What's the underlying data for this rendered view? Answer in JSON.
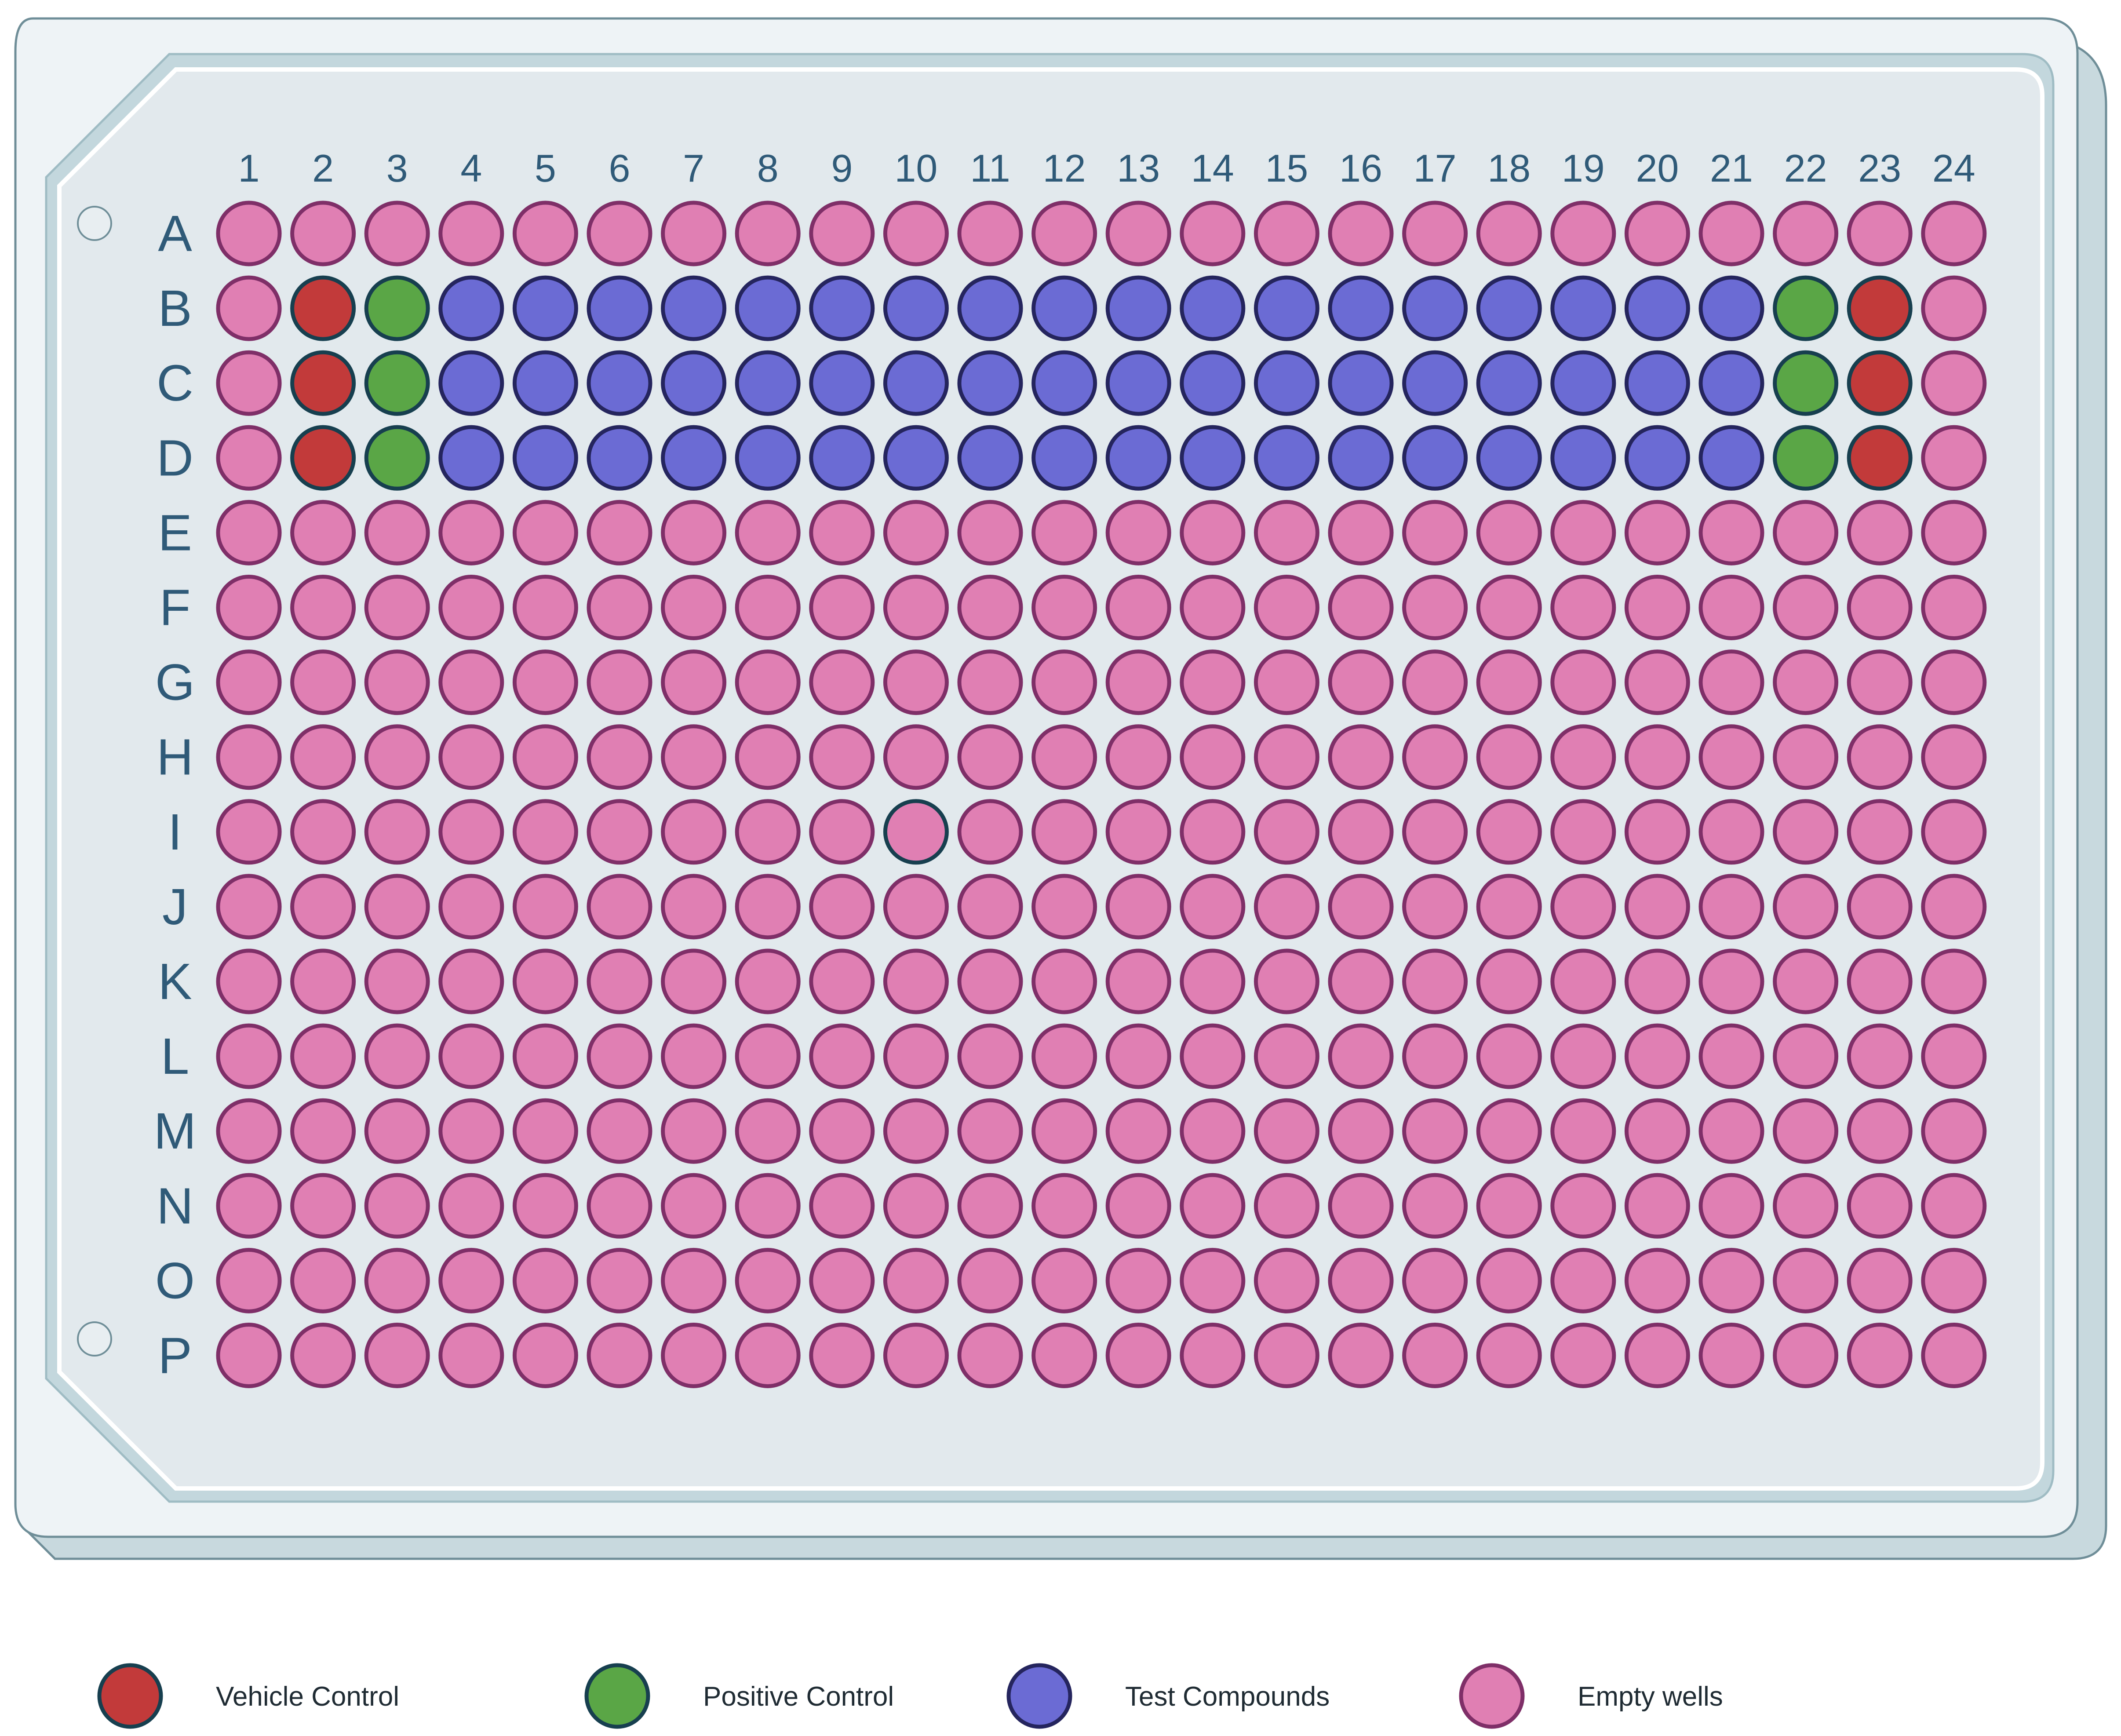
{
  "columns": [
    "1",
    "2",
    "3",
    "4",
    "5",
    "6",
    "7",
    "8",
    "9",
    "10",
    "11",
    "12",
    "13",
    "14",
    "15",
    "16",
    "17",
    "18",
    "19",
    "20",
    "21",
    "22",
    "23",
    "24"
  ],
  "rows": [
    "A",
    "B",
    "C",
    "D",
    "E",
    "F",
    "G",
    "H",
    "I",
    "J",
    "K",
    "L",
    "M",
    "N",
    "O",
    "P"
  ],
  "well_types": {
    "vehicle": {
      "fill": "#c23a3a",
      "stroke": "#173f4f"
    },
    "positive": {
      "fill": "#5aa646",
      "stroke": "#173f4f"
    },
    "test": {
      "fill": "#6b6bd4",
      "stroke": "#25255e"
    },
    "empty": {
      "fill": "#e07fb3",
      "stroke": "#7f2f68"
    }
  },
  "wells": {
    "A": [
      "empty",
      "empty",
      "empty",
      "empty",
      "empty",
      "empty",
      "empty",
      "empty",
      "empty",
      "empty",
      "empty",
      "empty",
      "empty",
      "empty",
      "empty",
      "empty",
      "empty",
      "empty",
      "empty",
      "empty",
      "empty",
      "empty",
      "empty",
      "empty"
    ],
    "B": [
      "empty",
      "vehicle",
      "positive",
      "test",
      "test",
      "test",
      "test",
      "test",
      "test",
      "test",
      "test",
      "test",
      "test",
      "test",
      "test",
      "test",
      "test",
      "test",
      "test",
      "test",
      "test",
      "positive",
      "vehicle",
      "empty"
    ],
    "C": [
      "empty",
      "vehicle",
      "positive",
      "test",
      "test",
      "test",
      "test",
      "test",
      "test",
      "test",
      "test",
      "test",
      "test",
      "test",
      "test",
      "test",
      "test",
      "test",
      "test",
      "test",
      "test",
      "positive",
      "vehicle",
      "empty"
    ],
    "D": [
      "empty",
      "vehicle",
      "positive",
      "test",
      "test",
      "test",
      "test",
      "test",
      "test",
      "test",
      "test",
      "test",
      "test",
      "test",
      "test",
      "test",
      "test",
      "test",
      "test",
      "test",
      "test",
      "positive",
      "vehicle",
      "empty"
    ],
    "E": [
      "empty",
      "empty",
      "empty",
      "empty",
      "empty",
      "empty",
      "empty",
      "empty",
      "empty",
      "empty",
      "empty",
      "empty",
      "empty",
      "empty",
      "empty",
      "empty",
      "empty",
      "empty",
      "empty",
      "empty",
      "empty",
      "empty",
      "empty",
      "empty"
    ],
    "F": [
      "empty",
      "empty",
      "empty",
      "empty",
      "empty",
      "empty",
      "empty",
      "empty",
      "empty",
      "empty",
      "empty",
      "empty",
      "empty",
      "empty",
      "empty",
      "empty",
      "empty",
      "empty",
      "empty",
      "empty",
      "empty",
      "empty",
      "empty",
      "empty"
    ],
    "G": [
      "empty",
      "empty",
      "empty",
      "empty",
      "empty",
      "empty",
      "empty",
      "empty",
      "empty",
      "empty",
      "empty",
      "empty",
      "empty",
      "empty",
      "empty",
      "empty",
      "empty",
      "empty",
      "empty",
      "empty",
      "empty",
      "empty",
      "empty",
      "empty"
    ],
    "H": [
      "empty",
      "empty",
      "empty",
      "empty",
      "empty",
      "empty",
      "empty",
      "empty",
      "empty",
      "empty",
      "empty",
      "empty",
      "empty",
      "empty",
      "empty",
      "empty",
      "empty",
      "empty",
      "empty",
      "empty",
      "empty",
      "empty",
      "empty",
      "empty"
    ],
    "I": [
      "empty",
      "empty",
      "empty",
      "empty",
      "empty",
      "empty",
      "empty",
      "empty",
      "empty",
      "empty",
      "empty",
      "empty",
      "empty",
      "empty",
      "empty",
      "empty",
      "empty",
      "empty",
      "empty",
      "empty",
      "empty",
      "empty",
      "empty",
      "empty"
    ],
    "J": [
      "empty",
      "empty",
      "empty",
      "empty",
      "empty",
      "empty",
      "empty",
      "empty",
      "empty",
      "empty",
      "empty",
      "empty",
      "empty",
      "empty",
      "empty",
      "empty",
      "empty",
      "empty",
      "empty",
      "empty",
      "empty",
      "empty",
      "empty",
      "empty"
    ],
    "K": [
      "empty",
      "empty",
      "empty",
      "empty",
      "empty",
      "empty",
      "empty",
      "empty",
      "empty",
      "empty",
      "empty",
      "empty",
      "empty",
      "empty",
      "empty",
      "empty",
      "empty",
      "empty",
      "empty",
      "empty",
      "empty",
      "empty",
      "empty",
      "empty"
    ],
    "L": [
      "empty",
      "empty",
      "empty",
      "empty",
      "empty",
      "empty",
      "empty",
      "empty",
      "empty",
      "empty",
      "empty",
      "empty",
      "empty",
      "empty",
      "empty",
      "empty",
      "empty",
      "empty",
      "empty",
      "empty",
      "empty",
      "empty",
      "empty",
      "empty"
    ],
    "M": [
      "empty",
      "empty",
      "empty",
      "empty",
      "empty",
      "empty",
      "empty",
      "empty",
      "empty",
      "empty",
      "empty",
      "empty",
      "empty",
      "empty",
      "empty",
      "empty",
      "empty",
      "empty",
      "empty",
      "empty",
      "empty",
      "empty",
      "empty",
      "empty"
    ],
    "N": [
      "empty",
      "empty",
      "empty",
      "empty",
      "empty",
      "empty",
      "empty",
      "empty",
      "empty",
      "empty",
      "empty",
      "empty",
      "empty",
      "empty",
      "empty",
      "empty",
      "empty",
      "empty",
      "empty",
      "empty",
      "empty",
      "empty",
      "empty",
      "empty"
    ],
    "O": [
      "empty",
      "empty",
      "empty",
      "empty",
      "empty",
      "empty",
      "empty",
      "empty",
      "empty",
      "empty",
      "empty",
      "empty",
      "empty",
      "empty",
      "empty",
      "empty",
      "empty",
      "empty",
      "empty",
      "empty",
      "empty",
      "empty",
      "empty",
      "empty"
    ],
    "P": [
      "empty",
      "empty",
      "empty",
      "empty",
      "empty",
      "empty",
      "empty",
      "empty",
      "empty",
      "empty",
      "empty",
      "empty",
      "empty",
      "empty",
      "empty",
      "empty",
      "empty",
      "empty",
      "empty",
      "empty",
      "empty",
      "empty",
      "empty",
      "empty"
    ]
  },
  "highlighted_wells": [
    "I10"
  ],
  "highlight_stroke": "#173f4f",
  "legend": [
    {
      "type": "vehicle",
      "label": "Vehicle Control"
    },
    {
      "type": "positive",
      "label": "Positive Control"
    },
    {
      "type": "test",
      "label": "Test Compounds"
    },
    {
      "type": "empty",
      "label": "Empty wells"
    }
  ]
}
